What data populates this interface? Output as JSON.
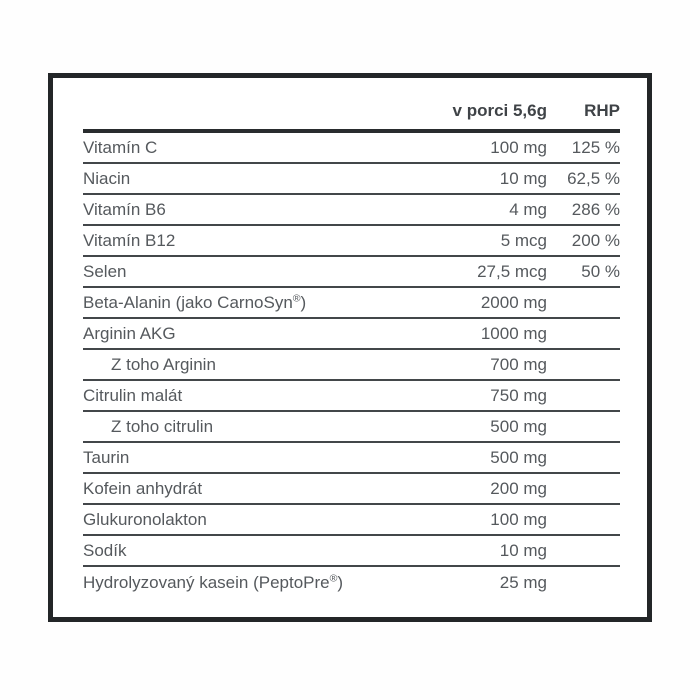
{
  "table": {
    "header": {
      "serving_label": "v porci 5,6g",
      "rhp_label": "RHP"
    },
    "rows": [
      {
        "label": "Vitamín C",
        "amount": "100 mg",
        "rhp": "125 %",
        "indent": false
      },
      {
        "label": "Niacin",
        "amount": "10 mg",
        "rhp": "62,5 %",
        "indent": false
      },
      {
        "label": "Vitamín B6",
        "amount": "4 mg",
        "rhp": "286 %",
        "indent": false
      },
      {
        "label": "Vitamín B12",
        "amount": "5 mcg",
        "rhp": "200 %",
        "indent": false
      },
      {
        "label": "Selen",
        "amount": "27,5 mcg",
        "rhp": "50 %",
        "indent": false
      },
      {
        "label": "Beta-Alanin (jako CarnoSyn®)",
        "amount": "2000 mg",
        "rhp": "",
        "indent": false
      },
      {
        "label": "Arginin AKG",
        "amount": "1000 mg",
        "rhp": "",
        "indent": false
      },
      {
        "label": "Z toho Arginin",
        "amount": "700 mg",
        "rhp": "",
        "indent": true
      },
      {
        "label": "Citrulin malát",
        "amount": "750 mg",
        "rhp": "",
        "indent": false
      },
      {
        "label": "Z toho citrulin",
        "amount": "500 mg",
        "rhp": "",
        "indent": true
      },
      {
        "label": "Taurin",
        "amount": "500 mg",
        "rhp": "",
        "indent": false
      },
      {
        "label": "Kofein anhydrát",
        "amount": "200 mg",
        "rhp": "",
        "indent": false
      },
      {
        "label": "Glukuronolakton",
        "amount": "100 mg",
        "rhp": "",
        "indent": false
      },
      {
        "label": "Sodík",
        "amount": "10 mg",
        "rhp": "",
        "indent": false
      },
      {
        "label": "Hydrolyzovaný kasein (PeptoPre®)",
        "amount": "25 mg",
        "rhp": "",
        "indent": false
      }
    ],
    "colors": {
      "border": "#232628",
      "header_rule": "#292c2e",
      "row_rule": "#43474a",
      "text": "#55595d",
      "header_text": "#3f4347",
      "background": "#ffffff"
    }
  }
}
